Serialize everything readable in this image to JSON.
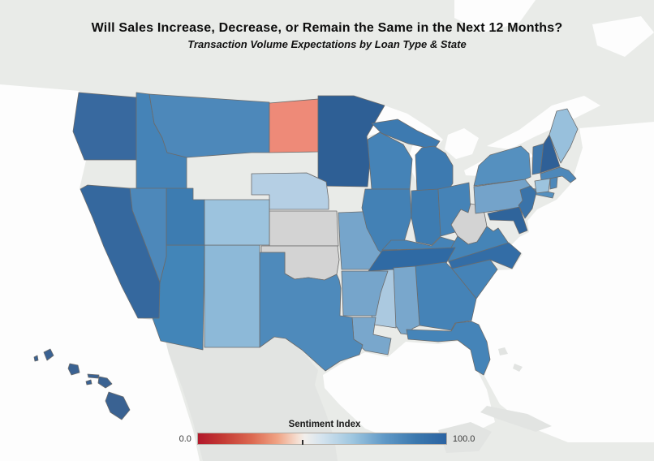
{
  "title": "Will Sales Increase, Decrease, or Remain the Same in the Next 12 Months?",
  "subtitle": "Transaction Volume Expectations by Loan Type & State",
  "legend": {
    "title": "Sentiment Index",
    "min_label": "0.0",
    "max_label": "100.0",
    "tick_position_pct": 42,
    "border_color": "#b3aca4",
    "gradient_stops": [
      {
        "pct": 0,
        "color": "#b2182b"
      },
      {
        "pct": 10,
        "color": "#c43a34"
      },
      {
        "pct": 22,
        "color": "#dd6a52"
      },
      {
        "pct": 32,
        "color": "#f0a384"
      },
      {
        "pct": 40,
        "color": "#f5ded1"
      },
      {
        "pct": 43,
        "color": "#f2efec"
      },
      {
        "pct": 50,
        "color": "#d4e3ee"
      },
      {
        "pct": 62,
        "color": "#9fc7e0"
      },
      {
        "pct": 75,
        "color": "#6099c7"
      },
      {
        "pct": 88,
        "color": "#3b78ae"
      },
      {
        "pct": 100,
        "color": "#2b63a2"
      }
    ]
  },
  "basemap": {
    "land_color": "#e9ebe8",
    "water_color": "#fdfdfd",
    "far_land_color": "#e2e4e2",
    "state_border_color": "#6b6b6b"
  },
  "chart_data": {
    "type": "choropleth_map",
    "region": "United States",
    "metric": "Sentiment Index",
    "scale": {
      "min": 0.0,
      "max": 100.0,
      "min_color": "#b2182b",
      "max_color": "#2b63a2",
      "center_color": "#f2efec"
    },
    "no_data_states": [
      "AK",
      "OR",
      "WY",
      "SD",
      "IA"
    ],
    "states": [
      {
        "abbr": "WA",
        "name": "Washington",
        "fill": "#38699f",
        "value_estimate": 84
      },
      {
        "abbr": "ID",
        "name": "Idaho",
        "fill": "#4583b7",
        "value_estimate": 77
      },
      {
        "abbr": "MT",
        "name": "Montana",
        "fill": "#4d88ba",
        "value_estimate": 75
      },
      {
        "abbr": "ND",
        "name": "North Dakota",
        "fill": "#ee8a78",
        "value_estimate": 30
      },
      {
        "abbr": "MN",
        "name": "Minnesota",
        "fill": "#2e5f95",
        "value_estimate": 90
      },
      {
        "abbr": "WI",
        "name": "Wisconsin",
        "fill": "#4583b7",
        "value_estimate": 77
      },
      {
        "abbr": "MI",
        "name": "Michigan",
        "fill": "#3d7ab0",
        "value_estimate": 80
      },
      {
        "abbr": "NE",
        "name": "Nebraska",
        "fill": "#b5cfe4",
        "value_estimate": 62
      },
      {
        "abbr": "KS",
        "name": "Kansas",
        "fill": "#d3d3d3",
        "value_estimate": null
      },
      {
        "abbr": "OK",
        "name": "Oklahoma",
        "fill": "#d3d3d3",
        "value_estimate": null
      },
      {
        "abbr": "MO",
        "name": "Missouri",
        "fill": "#76a5cb",
        "value_estimate": 70
      },
      {
        "abbr": "IL",
        "name": "Illinois",
        "fill": "#4381b5",
        "value_estimate": 78
      },
      {
        "abbr": "IN",
        "name": "Indiana",
        "fill": "#3e7cb1",
        "value_estimate": 79
      },
      {
        "abbr": "OH",
        "name": "Ohio",
        "fill": "#4583b7",
        "value_estimate": 77
      },
      {
        "abbr": "KY",
        "name": "Kentucky",
        "fill": "#4583b7",
        "value_estimate": 77
      },
      {
        "abbr": "WV",
        "name": "West Virginia",
        "fill": "#d3d3d3",
        "value_estimate": null
      },
      {
        "abbr": "VA",
        "name": "Virginia",
        "fill": "#4584b7",
        "value_estimate": 78
      },
      {
        "abbr": "TN",
        "name": "Tennessee",
        "fill": "#2f6aa4",
        "value_estimate": 86
      },
      {
        "abbr": "NC",
        "name": "North Carolina",
        "fill": "#336da6",
        "value_estimate": 85
      },
      {
        "abbr": "SC",
        "name": "South Carolina",
        "fill": "#4583b7",
        "value_estimate": 77
      },
      {
        "abbr": "GA",
        "name": "Georgia",
        "fill": "#4583b7",
        "value_estimate": 77
      },
      {
        "abbr": "AL",
        "name": "Alabama",
        "fill": "#79a7cc",
        "value_estimate": 70
      },
      {
        "abbr": "MS",
        "name": "Mississippi",
        "fill": "#abc9e0",
        "value_estimate": 62
      },
      {
        "abbr": "AR",
        "name": "Arkansas",
        "fill": "#76a5cb",
        "value_estimate": 71
      },
      {
        "abbr": "LA",
        "name": "Louisiana",
        "fill": "#79a7cc",
        "value_estimate": 70
      },
      {
        "abbr": "TX",
        "name": "Texas",
        "fill": "#4e8abb",
        "value_estimate": 76
      },
      {
        "abbr": "NM",
        "name": "New Mexico",
        "fill": "#8db9d8",
        "value_estimate": 65
      },
      {
        "abbr": "AZ",
        "name": "Arizona",
        "fill": "#4285b8",
        "value_estimate": 77
      },
      {
        "abbr": "UT",
        "name": "Utah",
        "fill": "#3d7cb1",
        "value_estimate": 79
      },
      {
        "abbr": "CO",
        "name": "Colorado",
        "fill": "#9cc3de",
        "value_estimate": 64
      },
      {
        "abbr": "NV",
        "name": "Nevada",
        "fill": "#4d88ba",
        "value_estimate": 75
      },
      {
        "abbr": "CA",
        "name": "California",
        "fill": "#35689e",
        "value_estimate": 86
      },
      {
        "abbr": "FL",
        "name": "Florida",
        "fill": "#4584b8",
        "value_estimate": 77
      },
      {
        "abbr": "PA",
        "name": "Pennsylvania",
        "fill": "#74a3ca",
        "value_estimate": 70
      },
      {
        "abbr": "NY",
        "name": "New York",
        "fill": "#5590bf",
        "value_estimate": 74
      },
      {
        "abbr": "VT",
        "name": "Vermont",
        "fill": "#4079ad",
        "value_estimate": 80
      },
      {
        "abbr": "NH",
        "name": "New Hampshire",
        "fill": "#2f6097",
        "value_estimate": 90
      },
      {
        "abbr": "ME",
        "name": "Maine",
        "fill": "#98c0dc",
        "value_estimate": 64
      },
      {
        "abbr": "MA",
        "name": "Massachusetts",
        "fill": "#4d88ba",
        "value_estimate": 75
      },
      {
        "abbr": "RI",
        "name": "Rhode Island",
        "fill": "#4d88ba",
        "value_estimate": 75
      },
      {
        "abbr": "CT",
        "name": "Connecticut",
        "fill": "#9cc3de",
        "value_estimate": 64
      },
      {
        "abbr": "NJ",
        "name": "New Jersey",
        "fill": "#3a73a9",
        "value_estimate": 83
      },
      {
        "abbr": "DE",
        "name": "Delaware",
        "fill": "#4787b9",
        "value_estimate": 76
      },
      {
        "abbr": "MD",
        "name": "Maryland",
        "fill": "#2f649b",
        "value_estimate": 87
      },
      {
        "abbr": "HI",
        "name": "Hawaii",
        "fill": "#3a6292",
        "value_estimate": 88
      }
    ]
  }
}
